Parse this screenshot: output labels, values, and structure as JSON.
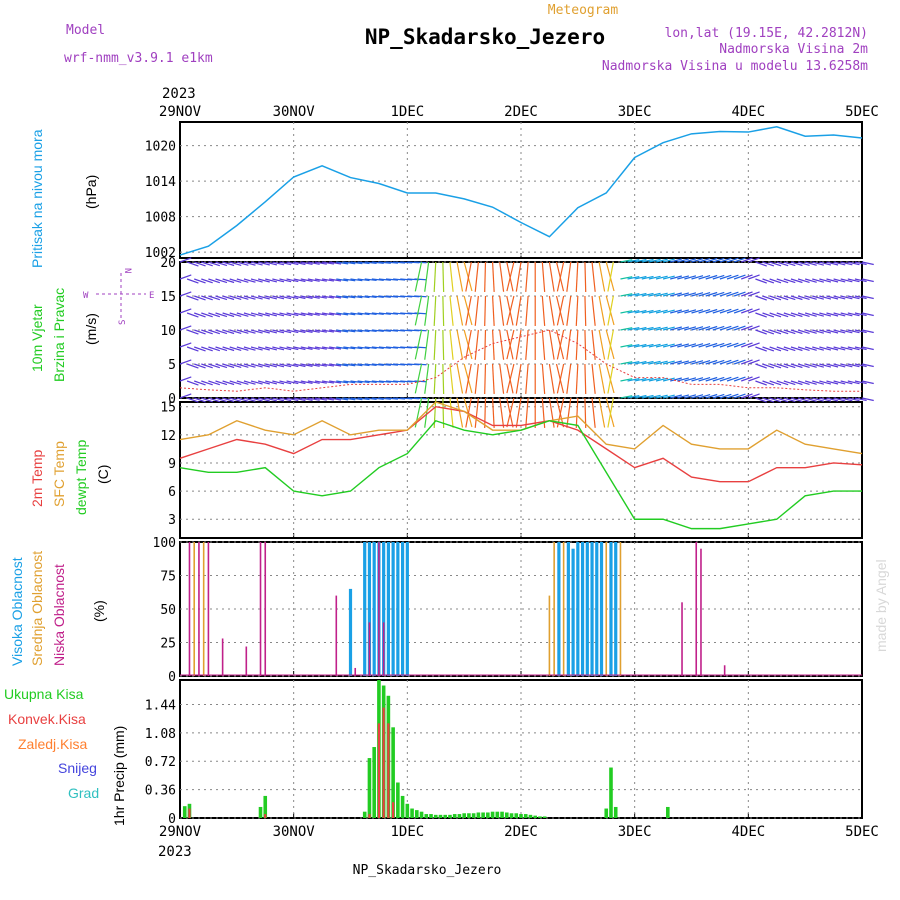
{
  "header": {
    "model_label": "Model",
    "model_name": "wrf-nmm_v3.9.1 e1km",
    "product": "Meteogram",
    "station": "NP_Skadarsko_Jezero",
    "lonlat": "lon,lat (19.15E, 42.2812N)",
    "elev1": "Nadmorska Visina 2m",
    "elev2": "Nadmorska Visina u modelu 13.6258m",
    "year_top": "2023",
    "year_bottom": "2023",
    "footer_station": "NP_Skadarsko_Jezero",
    "watermark": "made by Angel"
  },
  "x_ticks": [
    "29NOV",
    "30NOV",
    "1DEC",
    "2DEC",
    "3DEC",
    "4DEC",
    "5DEC"
  ],
  "colors": {
    "pressure": "#1aa0e6",
    "t2m": "#e84040",
    "tsfc": "#e0a030",
    "dewp": "#22cc22",
    "cl_high": "#1aa0e6",
    "cl_mid": "#e0a030",
    "cl_low": "#c0208a",
    "pr_total": "#22cc22",
    "pr_conv": "#e84040",
    "pr_frozen": "#ff8030",
    "pr_snow": "#4444dd",
    "pr_graupel": "#30c0c0",
    "wind_dir_label": "#a040c0"
  },
  "panels": {
    "pressure": {
      "labels": [
        "Pritisak na nivou mora",
        "(hPa)"
      ],
      "yticks": [
        "1002",
        "1008",
        "1014",
        "1020"
      ]
    },
    "wind": {
      "labels": [
        "10m Vjetar",
        "Brzina i Pravac",
        "(m/s)"
      ],
      "yticks": [
        "0",
        "5",
        "10",
        "15",
        "20"
      ],
      "dir_w": "W",
      "dir_e": "E",
      "dir_n": "N",
      "dir_s": "S"
    },
    "temp": {
      "labels": [
        "2m Temp",
        "SFC Temp",
        "dewpt Temp",
        "(C)"
      ],
      "yticks": [
        "3",
        "6",
        "9",
        "12",
        "15"
      ]
    },
    "cloud": {
      "labels": [
        "Visoka Oblacnost",
        "Srednja Oblacnost",
        "Niska Oblacnost",
        "(%)"
      ],
      "yticks": [
        "0",
        "25",
        "50",
        "75",
        "100"
      ]
    },
    "precip": {
      "labels": [
        "Ukupna Kisa",
        "Konvek.Kisa",
        "Zaledj.Kisa",
        "Snijeg",
        "Grad",
        "1hr Precip (mm)"
      ],
      "yticks": [
        "0",
        "0.36",
        "0.72",
        "1.08",
        "1.44"
      ]
    }
  },
  "chart_data": [
    {
      "type": "line",
      "name": "Pritisak na nivou mora",
      "ylabel": "(hPa)",
      "ylim": [
        1001,
        1024
      ],
      "x_hours": [
        0,
        6,
        12,
        18,
        24,
        30,
        36,
        42,
        48,
        54,
        60,
        66,
        72,
        78,
        84,
        90,
        96,
        102,
        108,
        114,
        120,
        126,
        132,
        138,
        144
      ],
      "series": [
        {
          "values": [
            1001.5,
            1003.0,
            1006.5,
            1010.5,
            1014.7,
            1016.6,
            1014.6,
            1013.6,
            1012.0,
            1012.0,
            1011.0,
            1009.6,
            1007.0,
            1004.6,
            1009.5,
            1012.0,
            1018.0,
            1020.5,
            1022.0,
            1022.4,
            1022.3,
            1023.2,
            1021.6,
            1021.8,
            1021.3
          ]
        }
      ]
    },
    {
      "type": "scatter",
      "name": "10m Vjetar Brzina i Pravac",
      "ylabel": "(m/s)",
      "ylim": [
        0,
        20
      ],
      "x_hours": [
        0,
        6,
        12,
        18,
        24,
        30,
        36,
        42,
        48,
        54,
        60,
        66,
        72,
        78,
        84,
        90,
        96,
        102,
        108,
        114,
        120,
        126,
        132,
        138,
        144
      ],
      "series": [
        {
          "name": "speed",
          "values": [
            1.5,
            1.2,
            1.0,
            1.5,
            1.0,
            1.5,
            2.0,
            2.0,
            2.0,
            3.0,
            6.0,
            8.0,
            9.0,
            10.0,
            8.0,
            5.0,
            3.0,
            3.0,
            2.0,
            2.0,
            1.5,
            1.5,
            1.2,
            1.0,
            1.0
          ]
        }
      ]
    },
    {
      "type": "line",
      "name": "Temperature",
      "ylabel": "(C)",
      "ylim": [
        1,
        15.5
      ],
      "x_hours": [
        0,
        6,
        12,
        18,
        24,
        30,
        36,
        42,
        48,
        54,
        60,
        66,
        72,
        78,
        84,
        90,
        96,
        102,
        108,
        114,
        120,
        126,
        132,
        138,
        144
      ],
      "series": [
        {
          "name": "2m Temp",
          "values": [
            9.5,
            10.5,
            11.5,
            11.0,
            10.0,
            11.5,
            11.5,
            12.0,
            12.5,
            15.0,
            14.5,
            13.0,
            13.0,
            13.5,
            12.5,
            10.5,
            8.5,
            9.5,
            7.5,
            7.0,
            7.0,
            8.5,
            8.5,
            9.0,
            8.8
          ]
        },
        {
          "name": "SFC Temp",
          "values": [
            11.5,
            12.0,
            13.5,
            12.5,
            12.0,
            13.5,
            12.0,
            12.5,
            12.5,
            15.5,
            14.5,
            12.5,
            12.5,
            13.5,
            14.0,
            11.0,
            10.5,
            13.0,
            11.0,
            10.5,
            10.5,
            12.5,
            11.0,
            10.5,
            10.0
          ]
        },
        {
          "name": "dewpt Temp",
          "values": [
            8.5,
            8.0,
            8.0,
            8.5,
            6.0,
            5.5,
            6.0,
            8.5,
            10.0,
            13.5,
            12.5,
            12.0,
            12.5,
            13.5,
            13.0,
            8.0,
            3.0,
            3.0,
            2.0,
            2.0,
            2.5,
            3.0,
            5.5,
            6.0,
            6.0
          ]
        }
      ]
    },
    {
      "type": "bar",
      "name": "Oblacnost",
      "ylabel": "(%)",
      "ylim": [
        0,
        100
      ],
      "bars": [
        {
          "h": 2,
          "v": 100,
          "c": "low"
        },
        {
          "h": 3,
          "v": 100,
          "c": "mid"
        },
        {
          "h": 4,
          "v": 100,
          "c": "low"
        },
        {
          "h": 5,
          "v": 100,
          "c": "mid"
        },
        {
          "h": 6,
          "v": 100,
          "c": "low"
        },
        {
          "h": 9,
          "v": 28,
          "c": "low"
        },
        {
          "h": 14,
          "v": 22,
          "c": "low"
        },
        {
          "h": 17,
          "v": 100,
          "c": "low"
        },
        {
          "h": 18,
          "v": 100,
          "c": "low"
        },
        {
          "h": 33,
          "v": 60,
          "c": "low"
        },
        {
          "h": 36,
          "v": 65,
          "c": "high"
        },
        {
          "h": 37,
          "v": 6,
          "c": "low"
        },
        {
          "h": 39,
          "v": 100,
          "c": "high"
        },
        {
          "h": 40,
          "v": 100,
          "c": "high"
        },
        {
          "h": 41,
          "v": 100,
          "c": "high"
        },
        {
          "h": 42,
          "v": 100,
          "c": "high"
        },
        {
          "h": 43,
          "v": 100,
          "c": "high"
        },
        {
          "h": 44,
          "v": 100,
          "c": "high"
        },
        {
          "h": 45,
          "v": 100,
          "c": "high"
        },
        {
          "h": 46,
          "v": 100,
          "c": "high"
        },
        {
          "h": 47,
          "v": 100,
          "c": "high"
        },
        {
          "h": 48,
          "v": 100,
          "c": "high"
        },
        {
          "h": 40,
          "v": 40,
          "c": "low"
        },
        {
          "h": 42,
          "v": 100,
          "c": "low"
        },
        {
          "h": 43,
          "v": 40,
          "c": "low"
        },
        {
          "h": 78,
          "v": 60,
          "c": "mid"
        },
        {
          "h": 79,
          "v": 100,
          "c": "mid"
        },
        {
          "h": 80,
          "v": 100,
          "c": "high"
        },
        {
          "h": 81,
          "v": 100,
          "c": "mid"
        },
        {
          "h": 82,
          "v": 100,
          "c": "high"
        },
        {
          "h": 83,
          "v": 95,
          "c": "high"
        },
        {
          "h": 84,
          "v": 100,
          "c": "high"
        },
        {
          "h": 85,
          "v": 100,
          "c": "high"
        },
        {
          "h": 86,
          "v": 100,
          "c": "high"
        },
        {
          "h": 87,
          "v": 100,
          "c": "high"
        },
        {
          "h": 88,
          "v": 100,
          "c": "high"
        },
        {
          "h": 89,
          "v": 100,
          "c": "high"
        },
        {
          "h": 90,
          "v": 100,
          "c": "mid"
        },
        {
          "h": 91,
          "v": 100,
          "c": "high"
        },
        {
          "h": 92,
          "v": 100,
          "c": "high"
        },
        {
          "h": 93,
          "v": 100,
          "c": "mid"
        },
        {
          "h": 106,
          "v": 55,
          "c": "low"
        },
        {
          "h": 109,
          "v": 100,
          "c": "low"
        },
        {
          "h": 110,
          "v": 95,
          "c": "low"
        },
        {
          "h": 115,
          "v": 8,
          "c": "low"
        }
      ]
    },
    {
      "type": "bar",
      "name": "1hr Precip",
      "ylabel": "(mm)",
      "ylim": [
        0,
        1.75
      ],
      "bars": [
        {
          "h": 1,
          "v": 0.15,
          "c": "total"
        },
        {
          "h": 2,
          "v": 0.18,
          "c": "total"
        },
        {
          "h": 17,
          "v": 0.14,
          "c": "total"
        },
        {
          "h": 18,
          "v": 0.28,
          "c": "total"
        },
        {
          "h": 39,
          "v": 0.08,
          "c": "total"
        },
        {
          "h": 40,
          "v": 0.76,
          "c": "total"
        },
        {
          "h": 41,
          "v": 0.9,
          "c": "total"
        },
        {
          "h": 42,
          "v": 1.75,
          "c": "total"
        },
        {
          "h": 43,
          "v": 1.68,
          "c": "total"
        },
        {
          "h": 44,
          "v": 1.55,
          "c": "total"
        },
        {
          "h": 45,
          "v": 1.15,
          "c": "total"
        },
        {
          "h": 46,
          "v": 0.45,
          "c": "total"
        },
        {
          "h": 47,
          "v": 0.28,
          "c": "total"
        },
        {
          "h": 48,
          "v": 0.18,
          "c": "total"
        },
        {
          "h": 49,
          "v": 0.12,
          "c": "total"
        },
        {
          "h": 50,
          "v": 0.1,
          "c": "total"
        },
        {
          "h": 51,
          "v": 0.08,
          "c": "total"
        },
        {
          "h": 52,
          "v": 0.05,
          "c": "total"
        },
        {
          "h": 53,
          "v": 0.05,
          "c": "total"
        },
        {
          "h": 54,
          "v": 0.04,
          "c": "total"
        },
        {
          "h": 55,
          "v": 0.04,
          "c": "total"
        },
        {
          "h": 56,
          "v": 0.04,
          "c": "total"
        },
        {
          "h": 57,
          "v": 0.04,
          "c": "total"
        },
        {
          "h": 58,
          "v": 0.05,
          "c": "total"
        },
        {
          "h": 59,
          "v": 0.05,
          "c": "total"
        },
        {
          "h": 60,
          "v": 0.06,
          "c": "total"
        },
        {
          "h": 61,
          "v": 0.06,
          "c": "total"
        },
        {
          "h": 62,
          "v": 0.06,
          "c": "total"
        },
        {
          "h": 63,
          "v": 0.07,
          "c": "total"
        },
        {
          "h": 64,
          "v": 0.07,
          "c": "total"
        },
        {
          "h": 65,
          "v": 0.07,
          "c": "total"
        },
        {
          "h": 66,
          "v": 0.08,
          "c": "total"
        },
        {
          "h": 67,
          "v": 0.08,
          "c": "total"
        },
        {
          "h": 68,
          "v": 0.08,
          "c": "total"
        },
        {
          "h": 69,
          "v": 0.07,
          "c": "total"
        },
        {
          "h": 70,
          "v": 0.06,
          "c": "total"
        },
        {
          "h": 71,
          "v": 0.06,
          "c": "total"
        },
        {
          "h": 72,
          "v": 0.05,
          "c": "total"
        },
        {
          "h": 73,
          "v": 0.05,
          "c": "total"
        },
        {
          "h": 74,
          "v": 0.04,
          "c": "total"
        },
        {
          "h": 75,
          "v": 0.03,
          "c": "total"
        },
        {
          "h": 76,
          "v": 0.02,
          "c": "total"
        },
        {
          "h": 77,
          "v": 0.02,
          "c": "total"
        },
        {
          "h": 90,
          "v": 0.12,
          "c": "total"
        },
        {
          "h": 91,
          "v": 0.64,
          "c": "total"
        },
        {
          "h": 92,
          "v": 0.14,
          "c": "total"
        },
        {
          "h": 103,
          "v": 0.14,
          "c": "total"
        },
        {
          "h": 40,
          "v": 0.05,
          "c": "conv"
        },
        {
          "h": 42,
          "v": 1.2,
          "c": "conv"
        },
        {
          "h": 43,
          "v": 1.4,
          "c": "conv"
        },
        {
          "h": 44,
          "v": 1.2,
          "c": "conv"
        },
        {
          "h": 45,
          "v": 0.2,
          "c": "conv"
        },
        {
          "h": 18,
          "v": 0.05,
          "c": "conv"
        },
        {
          "h": 2,
          "v": 0.12,
          "c": "conv"
        }
      ]
    }
  ]
}
